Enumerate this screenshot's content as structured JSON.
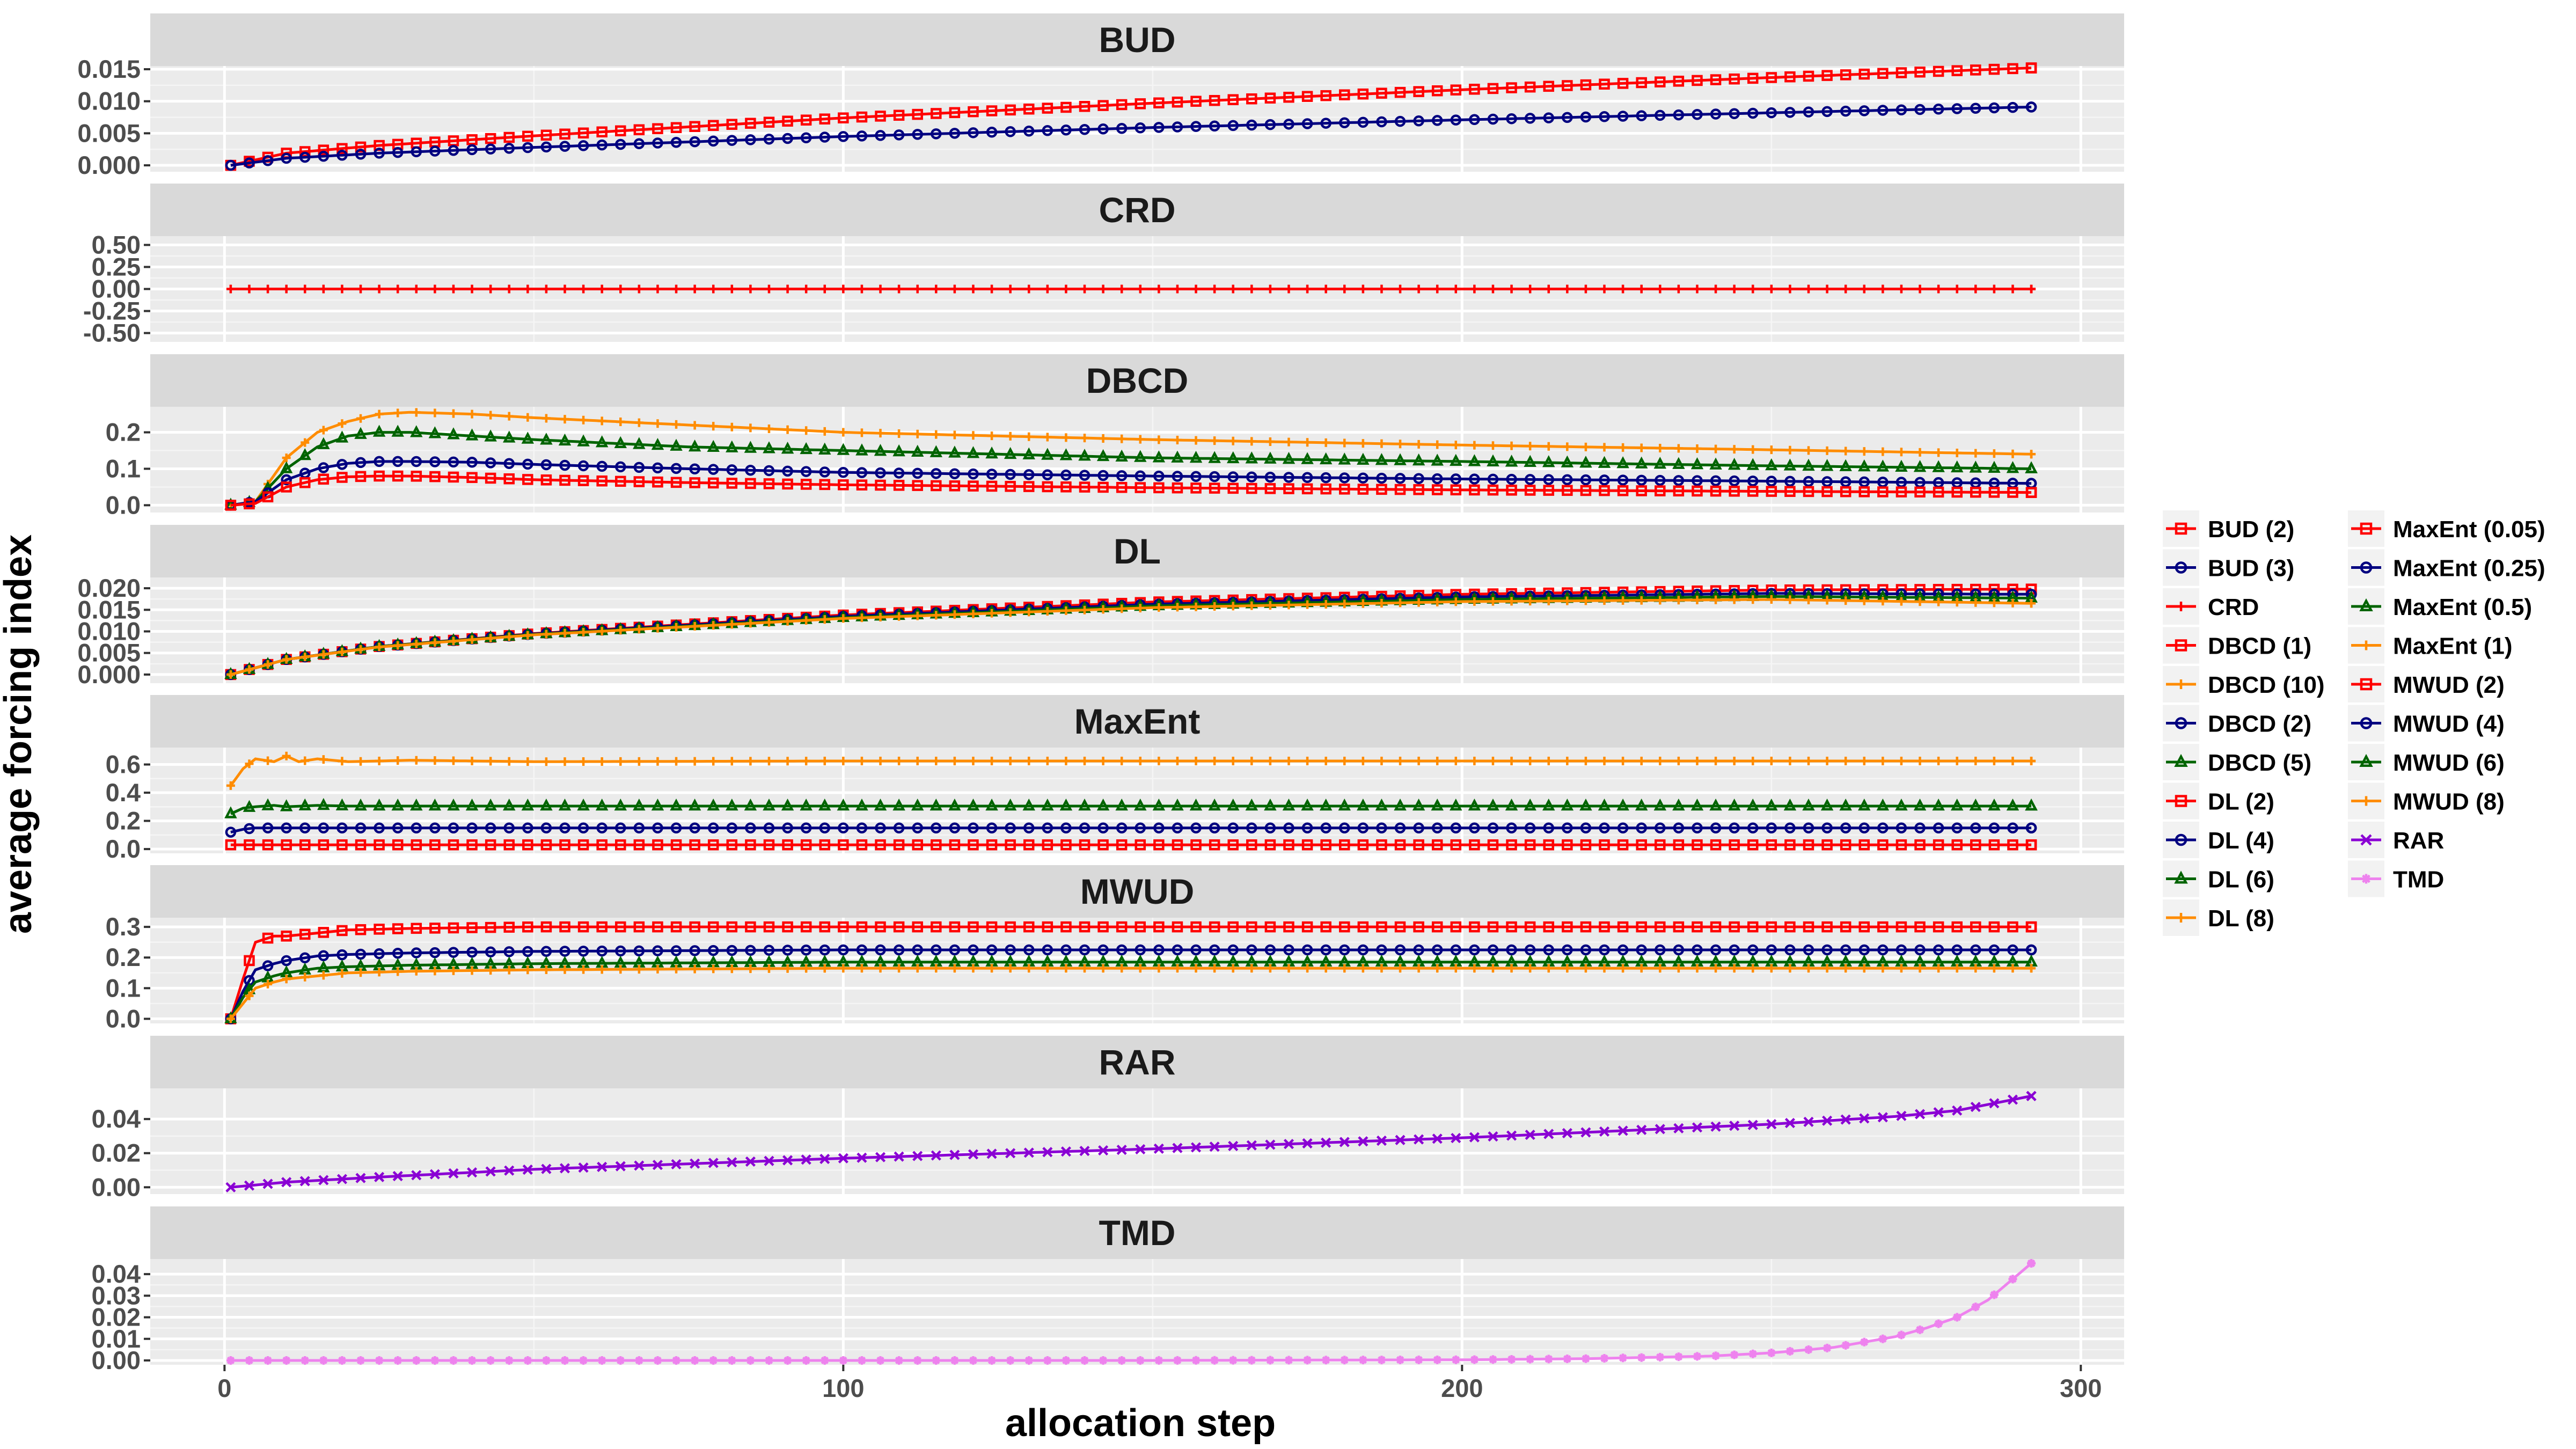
{
  "chart_data": {
    "type": "line",
    "xlabel": "allocation step",
    "ylabel": "average forcing index",
    "x_range": [
      1,
      292
    ],
    "xlim": [
      -12,
      307
    ],
    "x_ticks": [
      0,
      100,
      200,
      300
    ],
    "grid": true,
    "legend_position": "right",
    "legend": [
      {
        "label": "BUD (2)",
        "color": "#ff0000",
        "shape": "square"
      },
      {
        "label": "BUD (3)",
        "color": "#000080",
        "shape": "circle"
      },
      {
        "label": "CRD",
        "color": "#ff0000",
        "shape": "plus"
      },
      {
        "label": "DBCD (1)",
        "color": "#ff0000",
        "shape": "square"
      },
      {
        "label": "DBCD (10)",
        "color": "#ff8c00",
        "shape": "plus"
      },
      {
        "label": "DBCD (2)",
        "color": "#000080",
        "shape": "circle"
      },
      {
        "label": "DBCD (5)",
        "color": "#006400",
        "shape": "triangle"
      },
      {
        "label": "DL (2)",
        "color": "#ff0000",
        "shape": "square"
      },
      {
        "label": "DL (4)",
        "color": "#000080",
        "shape": "circle"
      },
      {
        "label": "DL (6)",
        "color": "#006400",
        "shape": "triangle"
      },
      {
        "label": "DL (8)",
        "color": "#ff8c00",
        "shape": "plus"
      },
      {
        "label": "MaxEnt (0.05)",
        "color": "#ff0000",
        "shape": "square"
      },
      {
        "label": "MaxEnt (0.25)",
        "color": "#000080",
        "shape": "circle"
      },
      {
        "label": "MaxEnt (0.5)",
        "color": "#006400",
        "shape": "triangle"
      },
      {
        "label": "MaxEnt (1)",
        "color": "#ff8c00",
        "shape": "plus"
      },
      {
        "label": "MWUD (2)",
        "color": "#ff0000",
        "shape": "square"
      },
      {
        "label": "MWUD (4)",
        "color": "#000080",
        "shape": "circle"
      },
      {
        "label": "MWUD (6)",
        "color": "#006400",
        "shape": "triangle"
      },
      {
        "label": "MWUD (8)",
        "color": "#ff8c00",
        "shape": "plus"
      },
      {
        "label": "RAR",
        "color": "#8a00d4",
        "shape": "cross"
      },
      {
        "label": "TMD",
        "color": "#ee82ee",
        "shape": "star"
      }
    ],
    "panels": [
      {
        "title": "BUD",
        "ylim": [
          -0.001,
          0.0155
        ],
        "y_ticks": [
          0.0,
          0.005,
          0.01,
          0.015
        ],
        "y_tick_labels": [
          "0.000",
          "0.005",
          "0.010",
          "0.015"
        ],
        "series": [
          {
            "name": "BUD (2)",
            "x": [
              1,
              10,
              25,
              50,
              100,
              150,
              200,
              250,
              292
            ],
            "values": [
              0.0,
              0.0019,
              0.0031,
              0.0046,
              0.0074,
              0.0097,
              0.0118,
              0.0137,
              0.0152
            ]
          },
          {
            "name": "BUD (3)",
            "x": [
              1,
              10,
              25,
              50,
              100,
              150,
              200,
              250,
              292
            ],
            "values": [
              0.0,
              0.0011,
              0.0019,
              0.0028,
              0.0045,
              0.0059,
              0.0071,
              0.0082,
              0.0091
            ]
          }
        ]
      },
      {
        "title": "CRD",
        "ylim": [
          -0.6,
          0.6
        ],
        "y_ticks": [
          -0.5,
          -0.25,
          0.0,
          0.25,
          0.5
        ],
        "y_tick_labels": [
          "-0.50",
          "-0.25",
          "0.00",
          "0.25",
          "0.50"
        ],
        "series": [
          {
            "name": "CRD",
            "x": [
              1,
              292
            ],
            "values": [
              0.0,
              0.0
            ]
          }
        ]
      },
      {
        "title": "DBCD",
        "ylim": [
          -0.02,
          0.27
        ],
        "y_ticks": [
          0.0,
          0.1,
          0.2
        ],
        "y_tick_labels": [
          "0.0",
          "0.1",
          "0.2"
        ],
        "series": [
          {
            "name": "DBCD (10)",
            "x": [
              1,
              5,
              10,
              15,
              20,
              25,
              30,
              40,
              50,
              75,
              100,
              150,
              200,
              250,
              292
            ],
            "values": [
              0.0,
              0.01,
              0.13,
              0.2,
              0.23,
              0.25,
              0.255,
              0.25,
              0.24,
              0.22,
              0.2,
              0.18,
              0.165,
              0.152,
              0.14
            ]
          },
          {
            "name": "DBCD (5)",
            "x": [
              1,
              5,
              10,
              15,
              20,
              25,
              30,
              40,
              50,
              75,
              100,
              150,
              200,
              250,
              292
            ],
            "values": [
              0.0,
              0.01,
              0.1,
              0.16,
              0.19,
              0.2,
              0.2,
              0.19,
              0.18,
              0.16,
              0.15,
              0.13,
              0.12,
              0.108,
              0.1
            ]
          },
          {
            "name": "DBCD (2)",
            "x": [
              1,
              5,
              10,
              15,
              20,
              25,
              30,
              40,
              50,
              75,
              100,
              150,
              200,
              250,
              292
            ],
            "values": [
              0.0,
              0.01,
              0.07,
              0.1,
              0.115,
              0.12,
              0.12,
              0.118,
              0.112,
              0.1,
              0.09,
              0.08,
              0.072,
              0.066,
              0.06
            ]
          },
          {
            "name": "DBCD (1)",
            "x": [
              1,
              5,
              10,
              15,
              20,
              25,
              30,
              40,
              50,
              75,
              100,
              150,
              200,
              250,
              292
            ],
            "values": [
              0.0,
              0.005,
              0.05,
              0.07,
              0.078,
              0.08,
              0.08,
              0.076,
              0.07,
              0.062,
              0.056,
              0.048,
              0.042,
              0.038,
              0.035
            ]
          }
        ]
      },
      {
        "title": "DL",
        "ylim": [
          -0.002,
          0.0225
        ],
        "y_ticks": [
          0.0,
          0.005,
          0.01,
          0.015,
          0.02
        ],
        "y_tick_labels": [
          "0.000",
          "0.005",
          "0.010",
          "0.015",
          "0.020"
        ],
        "series": [
          {
            "name": "DL (2)",
            "x": [
              1,
              10,
              25,
              50,
              100,
              150,
              200,
              250,
              292
            ],
            "values": [
              0.0,
              0.0035,
              0.0065,
              0.0095,
              0.0138,
              0.0168,
              0.0186,
              0.0196,
              0.0198
            ]
          },
          {
            "name": "DL (4)",
            "x": [
              1,
              10,
              25,
              50,
              100,
              150,
              200,
              250,
              292
            ],
            "values": [
              0.0,
              0.0035,
              0.0065,
              0.0094,
              0.0135,
              0.0163,
              0.018,
              0.0188,
              0.0186
            ]
          },
          {
            "name": "DL (6)",
            "x": [
              1,
              10,
              25,
              50,
              100,
              150,
              200,
              250,
              292
            ],
            "values": [
              0.0,
              0.0035,
              0.0065,
              0.0093,
              0.0132,
              0.0159,
              0.0174,
              0.0181,
              0.0177
            ]
          },
          {
            "name": "DL (8)",
            "x": [
              1,
              10,
              25,
              50,
              100,
              150,
              200,
              250,
              292
            ],
            "values": [
              0.0,
              0.0035,
              0.0064,
              0.0092,
              0.013,
              0.0155,
              0.0169,
              0.0174,
              0.0165
            ]
          }
        ]
      },
      {
        "title": "MaxEnt",
        "ylim": [
          -0.03,
          0.72
        ],
        "y_ticks": [
          0.0,
          0.2,
          0.4,
          0.6
        ],
        "y_tick_labels": [
          "0.0",
          "0.2",
          "0.4",
          "0.6"
        ],
        "series": [
          {
            "name": "MaxEnt (1)",
            "x": [
              1,
              3,
              5,
              8,
              10,
              12,
              15,
              20,
              30,
              50,
              100,
              200,
              292
            ],
            "values": [
              0.45,
              0.57,
              0.64,
              0.62,
              0.66,
              0.62,
              0.64,
              0.62,
              0.63,
              0.62,
              0.625,
              0.625,
              0.625
            ]
          },
          {
            "name": "MaxEnt (0.5)",
            "x": [
              1,
              3,
              5,
              8,
              10,
              15,
              20,
              50,
              100,
              200,
              292
            ],
            "values": [
              0.25,
              0.29,
              0.3,
              0.31,
              0.3,
              0.31,
              0.305,
              0.305,
              0.305,
              0.305,
              0.305
            ]
          },
          {
            "name": "MaxEnt (0.25)",
            "x": [
              1,
              3,
              5,
              10,
              20,
              50,
              100,
              200,
              292
            ],
            "values": [
              0.12,
              0.14,
              0.15,
              0.15,
              0.15,
              0.15,
              0.15,
              0.15,
              0.15
            ]
          },
          {
            "name": "MaxEnt (0.05)",
            "x": [
              1,
              5,
              10,
              50,
              100,
              200,
              292
            ],
            "values": [
              0.03,
              0.03,
              0.03,
              0.03,
              0.03,
              0.03,
              0.03
            ]
          }
        ]
      },
      {
        "title": "MWUD",
        "ylim": [
          -0.015,
          0.33
        ],
        "y_ticks": [
          0.0,
          0.1,
          0.2,
          0.3
        ],
        "y_tick_labels": [
          "0.0",
          "0.1",
          "0.2",
          "0.3"
        ],
        "series": [
          {
            "name": "MWUD (2)",
            "x": [
              1,
              3,
              5,
              8,
              10,
              15,
              20,
              30,
              50,
              100,
              200,
              292
            ],
            "values": [
              0.0,
              0.13,
              0.25,
              0.27,
              0.27,
              0.28,
              0.29,
              0.295,
              0.3,
              0.3,
              0.3,
              0.3
            ]
          },
          {
            "name": "MWUD (4)",
            "x": [
              1,
              3,
              5,
              8,
              10,
              15,
              20,
              30,
              50,
              100,
              200,
              292
            ],
            "values": [
              0.0,
              0.09,
              0.16,
              0.18,
              0.19,
              0.205,
              0.21,
              0.215,
              0.22,
              0.225,
              0.225,
              0.225
            ]
          },
          {
            "name": "MWUD (6)",
            "x": [
              1,
              3,
              5,
              8,
              10,
              15,
              20,
              30,
              50,
              100,
              200,
              292
            ],
            "values": [
              0.0,
              0.07,
              0.12,
              0.14,
              0.15,
              0.165,
              0.17,
              0.175,
              0.18,
              0.185,
              0.185,
              0.185
            ]
          },
          {
            "name": "MWUD (8)",
            "x": [
              1,
              3,
              5,
              8,
              10,
              15,
              20,
              30,
              50,
              100,
              200,
              292
            ],
            "values": [
              0.0,
              0.05,
              0.1,
              0.12,
              0.13,
              0.14,
              0.15,
              0.155,
              0.16,
              0.165,
              0.165,
              0.165
            ]
          }
        ]
      },
      {
        "title": "RAR",
        "ylim": [
          -0.004,
          0.058
        ],
        "y_ticks": [
          0.0,
          0.02,
          0.04
        ],
        "y_tick_labels": [
          "0.00",
          "0.02",
          "0.04"
        ],
        "series": [
          {
            "name": "RAR",
            "x": [
              1,
              10,
              25,
              50,
              100,
              150,
              200,
              250,
              270,
              280,
              292
            ],
            "values": [
              0.0,
              0.003,
              0.006,
              0.0105,
              0.017,
              0.0225,
              0.029,
              0.037,
              0.0415,
              0.045,
              0.0535
            ]
          }
        ]
      },
      {
        "title": "TMD",
        "ylim": [
          -0.002,
          0.047
        ],
        "y_ticks": [
          0.0,
          0.01,
          0.02,
          0.03,
          0.04
        ],
        "y_tick_labels": [
          "0.00",
          "0.01",
          "0.02",
          "0.03",
          "0.04"
        ],
        "series": [
          {
            "name": "TMD",
            "x": [
              1,
              100,
              150,
              200,
              220,
              240,
              250,
              260,
              270,
              275,
              280,
              285,
              292
            ],
            "values": [
              0.0,
              0.0,
              0.0,
              0.0003,
              0.0008,
              0.002,
              0.0035,
              0.006,
              0.011,
              0.015,
              0.02,
              0.028,
              0.045
            ]
          }
        ]
      }
    ]
  }
}
